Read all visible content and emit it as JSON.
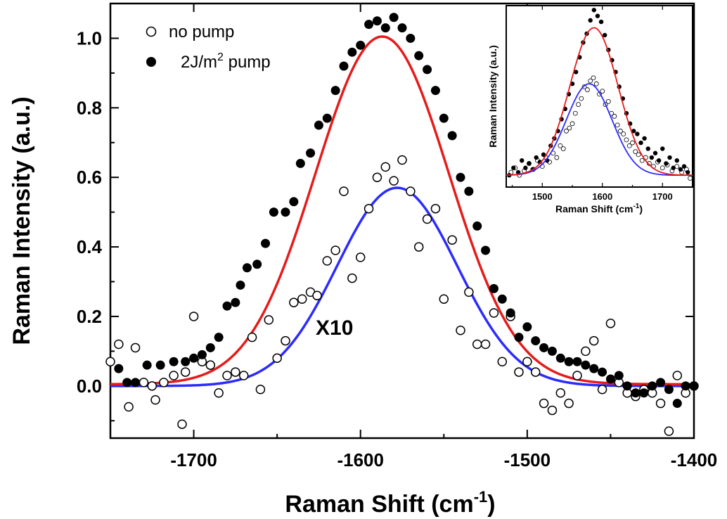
{
  "chart_data": [
    {
      "type": "scatter",
      "xlabel": "Raman Shift (cm",
      "xlabel_sup": "-1",
      "xlabel_end": ")",
      "ylabel": "Raman Intensity (a.u.)",
      "xlim": [
        -1750,
        -1400
      ],
      "ylim": [
        -0.15,
        1.1
      ],
      "x_ticks": [
        -1700,
        -1600,
        -1500,
        -1400
      ],
      "x_tick_labels": [
        "-1700",
        "-1600",
        "-1500",
        "-1400"
      ],
      "y_ticks": [
        0.0,
        0.2,
        0.4,
        0.6,
        0.8,
        1.0
      ],
      "y_tick_labels": [
        "0.0",
        "0.2",
        "0.4",
        "0.6",
        "0.8",
        "1.0"
      ],
      "annotation": "X10",
      "legend_position": "top-left",
      "legend": [
        {
          "label": "no pump",
          "marker": "open-circle"
        },
        {
          "label_pre": "2J/m",
          "label_sup": "2",
          "label_post": " pump",
          "marker": "filled-circle"
        }
      ],
      "series": [
        {
          "key": "no_pump",
          "marker": "open-circle",
          "x": [
            -1750,
            -1745,
            -1739,
            -1735,
            -1730,
            -1725,
            -1723,
            -1718,
            -1712,
            -1707,
            -1705,
            -1700,
            -1695,
            -1690,
            -1685,
            -1680,
            -1675,
            -1670,
            -1665,
            -1660,
            -1655,
            -1650,
            -1645,
            -1640,
            -1635,
            -1630,
            -1626,
            -1620,
            -1615,
            -1610,
            -1605,
            -1600,
            -1595,
            -1590,
            -1585,
            -1580,
            -1575,
            -1570,
            -1565,
            -1560,
            -1555,
            -1550,
            -1545,
            -1540,
            -1535,
            -1530,
            -1525,
            -1520,
            -1515,
            -1510,
            -1505,
            -1500,
            -1495,
            -1490,
            -1485,
            -1480,
            -1475,
            -1470,
            -1465,
            -1460,
            -1455,
            -1450,
            -1445,
            -1440,
            -1435,
            -1430,
            -1425,
            -1420,
            -1415,
            -1410,
            -1405,
            -1400
          ],
          "y": [
            0.07,
            0.12,
            -0.06,
            0.11,
            0.01,
            0.0,
            -0.04,
            0.01,
            0.03,
            -0.11,
            0.04,
            0.2,
            0.07,
            0.06,
            -0.02,
            0.03,
            0.04,
            0.03,
            0.14,
            -0.01,
            0.19,
            0.08,
            0.13,
            0.24,
            0.25,
            0.27,
            0.26,
            0.36,
            0.39,
            0.56,
            0.31,
            0.37,
            0.51,
            0.6,
            0.63,
            0.59,
            0.65,
            0.56,
            0.4,
            0.48,
            0.51,
            0.25,
            0.42,
            0.16,
            0.27,
            0.12,
            0.12,
            0.21,
            0.07,
            0.2,
            0.04,
            0.07,
            0.04,
            -0.05,
            -0.07,
            -0.02,
            -0.05,
            0.03,
            0.1,
            0.13,
            -0.01,
            0.18,
            0.01,
            -0.02,
            -0.03,
            -0.01,
            -0.02,
            -0.05,
            -0.13,
            0.03,
            -0.02,
            0.0
          ]
        },
        {
          "key": "pump",
          "marker": "filled-circle",
          "x": [
            -1745,
            -1740,
            -1735,
            -1728,
            -1720,
            -1712,
            -1705,
            -1700,
            -1695,
            -1690,
            -1685,
            -1680,
            -1675,
            -1672,
            -1668,
            -1662,
            -1657,
            -1652,
            -1645,
            -1640,
            -1636,
            -1630,
            -1625,
            -1620,
            -1615,
            -1610,
            -1605,
            -1600,
            -1595,
            -1590,
            -1585,
            -1580,
            -1575,
            -1570,
            -1565,
            -1560,
            -1555,
            -1550,
            -1545,
            -1540,
            -1535,
            -1530,
            -1525,
            -1520,
            -1515,
            -1510,
            -1505,
            -1500,
            -1495,
            -1490,
            -1485,
            -1480,
            -1475,
            -1470,
            -1465,
            -1460,
            -1455,
            -1450,
            -1445,
            -1440,
            -1435,
            -1430,
            -1425,
            -1420,
            -1415,
            -1410,
            -1405,
            -1400
          ],
          "y": [
            0.05,
            0.01,
            0.01,
            0.06,
            0.06,
            0.07,
            0.07,
            0.08,
            0.09,
            0.11,
            0.14,
            0.23,
            0.24,
            0.29,
            0.34,
            0.35,
            0.41,
            0.5,
            0.5,
            0.53,
            0.64,
            0.67,
            0.75,
            0.77,
            0.85,
            0.92,
            0.96,
            0.98,
            1.04,
            1.05,
            1.03,
            1.06,
            1.03,
            1.0,
            0.95,
            0.91,
            0.85,
            0.77,
            0.72,
            0.6,
            0.56,
            0.46,
            0.39,
            0.28,
            0.25,
            0.21,
            0.14,
            0.17,
            0.13,
            0.11,
            0.1,
            0.08,
            0.07,
            0.07,
            0.06,
            0.05,
            0.04,
            0.02,
            0.03,
            0.0,
            -0.02,
            -0.02,
            0.0,
            0.01,
            -0.01,
            -0.05,
            0.0,
            0.0
          ]
        }
      ],
      "fits": [
        {
          "key": "no_pump_fit",
          "color": "#2b2bff",
          "center": -1578,
          "amplitude": 0.57,
          "sigma": 36,
          "offset": 0.0
        },
        {
          "key": "pump_fit",
          "color": "#e51b1b",
          "center": -1587,
          "amplitude": 1.0,
          "sigma": 40,
          "offset": 0.005
        }
      ]
    },
    {
      "type": "scatter",
      "xlabel": "Raman Shift (cm",
      "xlabel_sup": "-1",
      "xlabel_end": ")",
      "ylabel": "Raman Intensity (a.u.)",
      "xlim": [
        1440,
        1750
      ],
      "ylim": [
        -0.08,
        1.15
      ],
      "x_ticks": [
        1500,
        1600,
        1700
      ],
      "x_tick_labels": [
        "1500",
        "1600",
        "1700"
      ],
      "series": [
        {
          "key": "inset_no_pump",
          "marker": "open-circle",
          "x": [
            1448,
            1455,
            1462,
            1470,
            1478,
            1485,
            1492,
            1500,
            1506,
            1512,
            1518,
            1524,
            1530,
            1535,
            1540,
            1545,
            1550,
            1555,
            1560,
            1565,
            1570,
            1575,
            1580,
            1585,
            1590,
            1595,
            1600,
            1605,
            1610,
            1615,
            1620,
            1625,
            1630,
            1635,
            1640,
            1645,
            1650,
            1655,
            1660,
            1666,
            1672,
            1678,
            1685,
            1692,
            1700,
            1708,
            1716,
            1724,
            1732,
            1740,
            1746
          ],
          "y": [
            0.02,
            0.05,
            0.0,
            0.03,
            0.08,
            0.04,
            0.1,
            0.06,
            0.12,
            0.09,
            0.15,
            0.12,
            0.2,
            0.18,
            0.3,
            0.32,
            0.35,
            0.42,
            0.48,
            0.52,
            0.6,
            0.58,
            0.64,
            0.66,
            0.62,
            0.55,
            0.57,
            0.48,
            0.5,
            0.42,
            0.4,
            0.34,
            0.3,
            0.28,
            0.24,
            0.2,
            0.22,
            0.16,
            0.14,
            0.1,
            0.12,
            0.08,
            0.06,
            0.09,
            0.05,
            0.07,
            0.03,
            0.06,
            0.02,
            0.04,
            -0.02
          ]
        },
        {
          "key": "inset_pump",
          "marker": "filled-circle",
          "x": [
            1445,
            1452,
            1460,
            1466,
            1472,
            1478,
            1484,
            1490,
            1496,
            1502,
            1508,
            1514,
            1520,
            1526,
            1532,
            1538,
            1544,
            1550,
            1556,
            1562,
            1568,
            1574,
            1580,
            1586,
            1592,
            1598,
            1604,
            1610,
            1616,
            1622,
            1628,
            1634,
            1640,
            1646,
            1652,
            1658,
            1664,
            1670,
            1676,
            1682,
            1688,
            1694,
            1700,
            1706,
            1712,
            1718,
            1724,
            1730,
            1736,
            1742
          ],
          "y": [
            0.0,
            0.05,
            0.02,
            0.1,
            0.05,
            0.08,
            0.04,
            0.12,
            0.09,
            0.14,
            0.1,
            0.2,
            0.25,
            0.3,
            0.38,
            0.45,
            0.55,
            0.62,
            0.7,
            0.8,
            0.9,
            0.96,
            1.05,
            1.12,
            1.08,
            1.04,
            0.95,
            0.85,
            0.78,
            0.7,
            0.6,
            0.52,
            0.42,
            0.35,
            0.3,
            0.28,
            0.22,
            0.25,
            0.18,
            0.12,
            0.15,
            0.1,
            0.18,
            0.08,
            0.12,
            0.05,
            0.1,
            0.04,
            0.06,
            0.02
          ]
        }
      ],
      "fits": [
        {
          "key": "inset_no_pump_fit",
          "color": "#2b2bff",
          "center": 1578,
          "amplitude": 0.62,
          "sigma": 38,
          "offset": 0.0
        },
        {
          "key": "inset_pump_fit",
          "color": "#e51b1b",
          "center": 1586,
          "amplitude": 1.0,
          "sigma": 40,
          "offset": 0.0
        }
      ]
    }
  ]
}
